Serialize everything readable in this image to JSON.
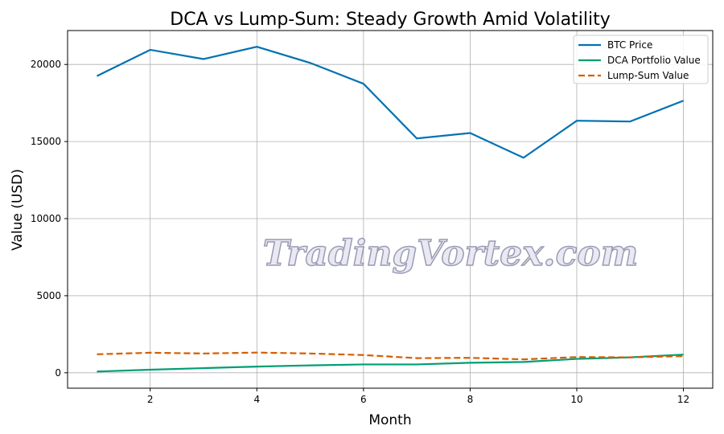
{
  "chart_data": {
    "type": "line",
    "title": "DCA vs Lump-Sum: Steady Growth Amid Volatility",
    "xlabel": "Month",
    "ylabel": "Value (USD)",
    "x": [
      1,
      2,
      3,
      4,
      5,
      6,
      7,
      8,
      9,
      10,
      11,
      12
    ],
    "xlim": [
      0.45,
      12.55
    ],
    "ylim": [
      -1000,
      22200
    ],
    "xticks": [
      2,
      4,
      6,
      8,
      10,
      12
    ],
    "yticks": [
      0,
      5000,
      10000,
      15000,
      20000
    ],
    "grid": true,
    "legend_position": "top-right",
    "series": [
      {
        "name": "BTC Price",
        "color": "#0072B2",
        "dash": false,
        "values": [
          19250,
          20950,
          20350,
          21150,
          20100,
          18750,
          15200,
          15550,
          13950,
          16350,
          16300,
          17650
        ]
      },
      {
        "name": "DCA Portfolio Value",
        "color": "#009E73",
        "dash": false,
        "values": [
          80,
          200,
          300,
          400,
          480,
          540,
          540,
          650,
          700,
          900,
          1000,
          1180
        ]
      },
      {
        "name": "Lump-Sum Value",
        "color": "#D55E00",
        "dash": true,
        "values": [
          1200,
          1300,
          1250,
          1310,
          1250,
          1150,
          950,
          970,
          870,
          1020,
          1000,
          1080
        ]
      }
    ]
  },
  "watermark": "TradingVortex.com"
}
